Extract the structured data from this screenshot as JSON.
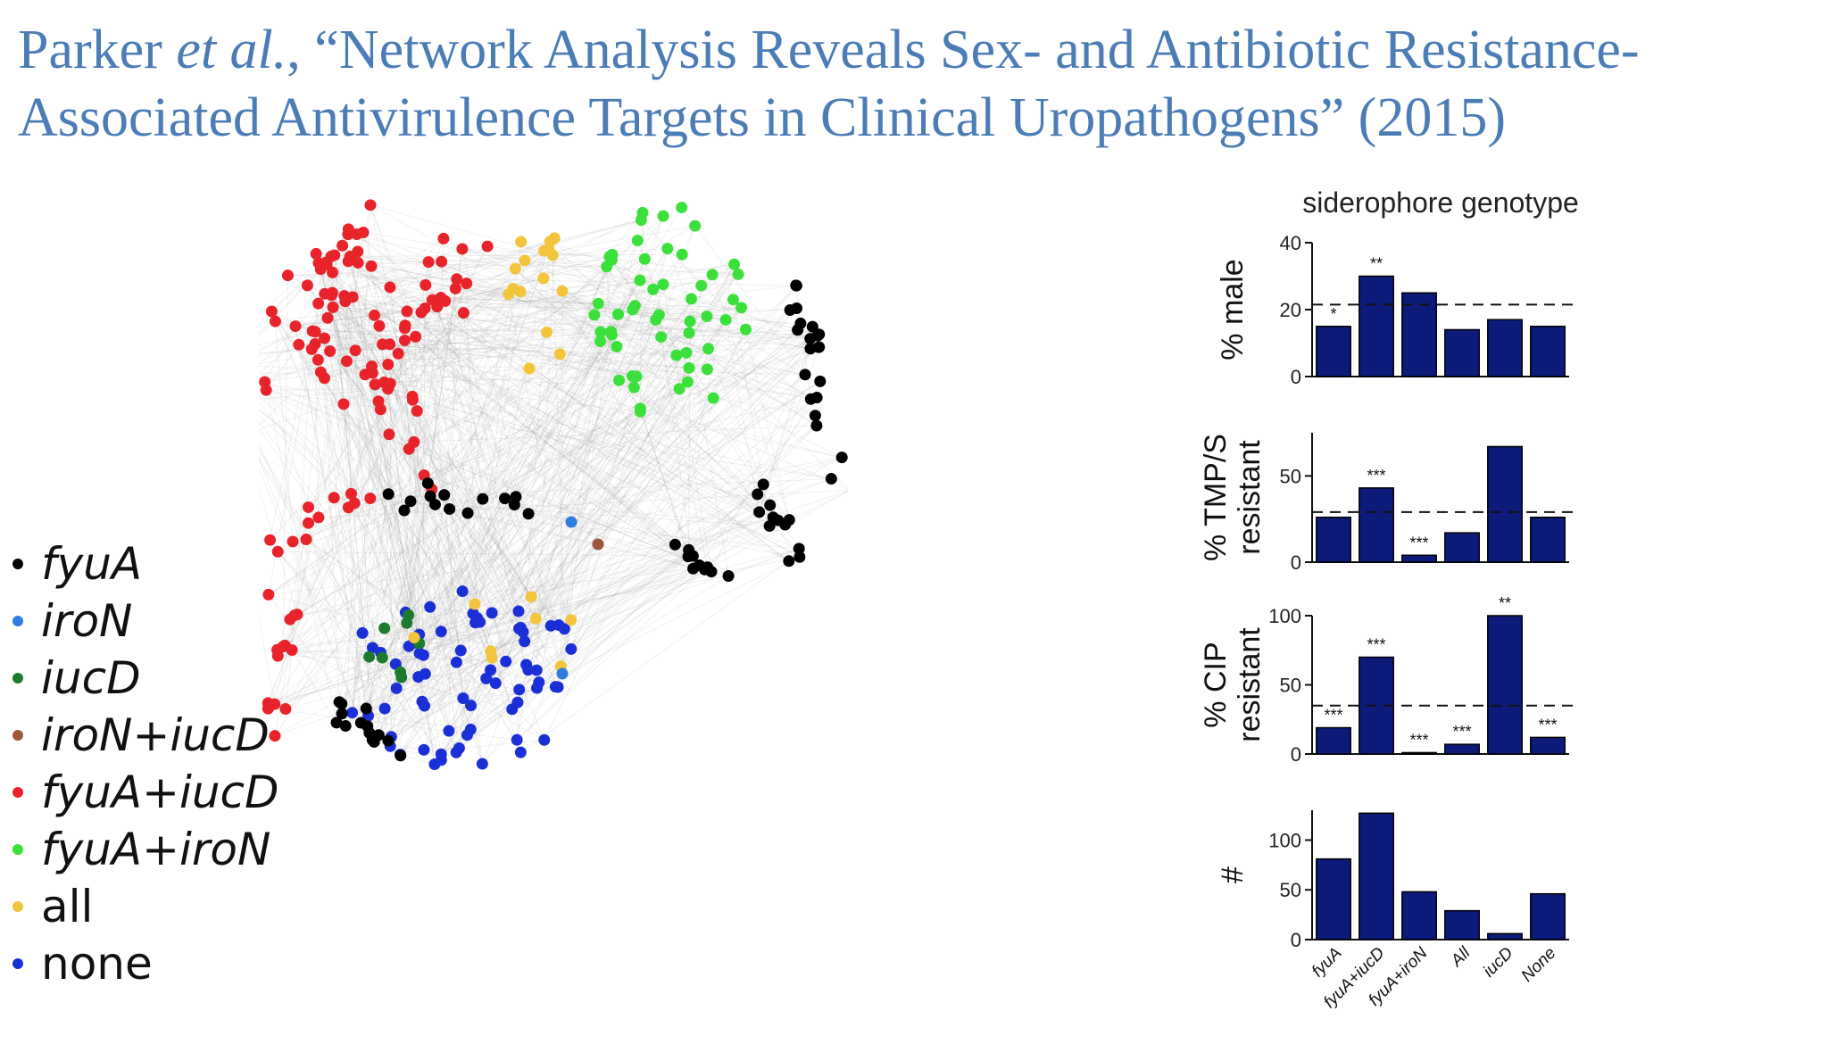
{
  "title": {
    "author": "Parker",
    "etal": "et al.",
    "after_etal": ", “Network Analysis Reveals Sex- and Antibiotic Resistance-",
    "line2": "Associated Antivirulence Targets in Clinical Uropathogens” (2015)"
  },
  "legend": [
    {
      "label": "fyuA",
      "color": "#000000",
      "italic": true
    },
    {
      "label": "iroN",
      "color": "#2f7de1",
      "italic": true
    },
    {
      "label": "iucD",
      "color": "#1d7a2e",
      "italic": true
    },
    {
      "label": "iroN+iucD",
      "color": "#a0553a",
      "italic": true
    },
    {
      "label": "fyuA+iucD",
      "color": "#e8232a",
      "italic": true
    },
    {
      "label": "fyuA+iroN",
      "color": "#3be03b",
      "italic": true
    },
    {
      "label": "all",
      "color": "#f2c53d",
      "italic": false
    },
    {
      "label": "none",
      "color": "#1b2fd6",
      "italic": false
    }
  ],
  "colors": {
    "bar": "#0c1a7a",
    "title": "#4a7cb5"
  },
  "chart_data": {
    "type": "bar",
    "title": "siderophore genotype",
    "categories": [
      "fyuA",
      "fyuA+iucD",
      "fyuA+iroN",
      "All",
      "iucD",
      "None"
    ],
    "panels": [
      {
        "ylabel": [
          "% male"
        ],
        "ylim": [
          0,
          40
        ],
        "ticks": [
          0,
          20,
          40
        ],
        "values": [
          15,
          30,
          25,
          14,
          17,
          15
        ],
        "reference": 21.5,
        "annotations": [
          "*",
          "**",
          "",
          "",
          "",
          ""
        ]
      },
      {
        "ylabel": [
          "% TMP/S",
          "resistant"
        ],
        "ylim": [
          0,
          75
        ],
        "ticks": [
          0,
          50
        ],
        "values": [
          26,
          43,
          4,
          17,
          67,
          26
        ],
        "reference": 29,
        "annotations": [
          "",
          "***",
          "***",
          "",
          "",
          ""
        ]
      },
      {
        "ylabel": [
          "% CIP",
          "resistant"
        ],
        "ylim": [
          0,
          100
        ],
        "ticks": [
          0,
          50,
          100
        ],
        "values": [
          19,
          70,
          1,
          7,
          100,
          12
        ],
        "reference": 35,
        "annotations": [
          "***",
          "***",
          "***",
          "***",
          "**",
          "***"
        ]
      },
      {
        "ylabel": [
          "#"
        ],
        "ylim": [
          0,
          130
        ],
        "ticks": [
          0,
          50,
          100
        ],
        "values": [
          81,
          127,
          48,
          29,
          6,
          46
        ],
        "reference": null,
        "annotations": [
          "",
          "",
          "",
          "",
          "",
          ""
        ]
      }
    ],
    "grid": false
  }
}
